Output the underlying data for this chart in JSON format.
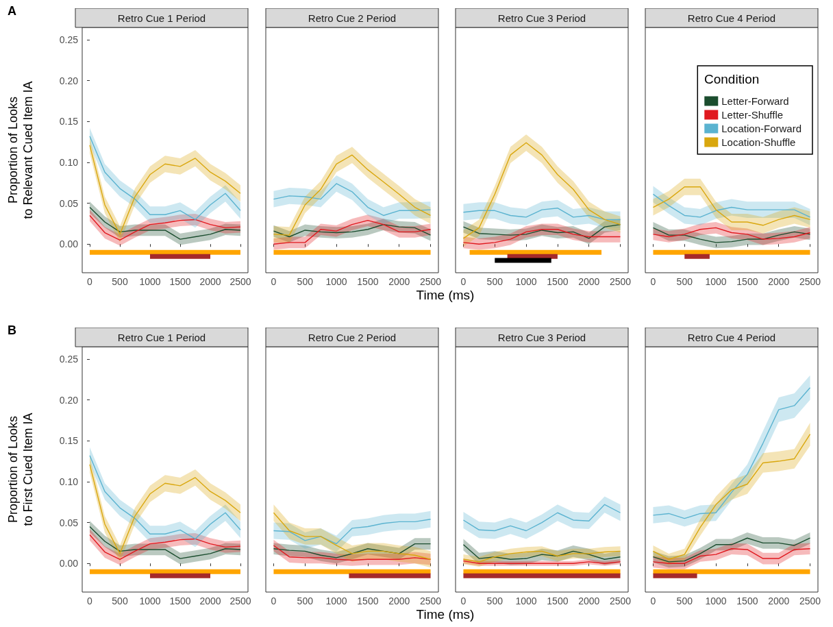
{
  "chart_data": [
    {
      "type": "line",
      "title": "Retro Cue 1 Period",
      "ylabel": "Proportion of Looks\nto Relevant Cued Item IA",
      "annotations": [
        "A"
      ],
      "xlim": [
        -125,
        2625
      ],
      "xticks": [
        0,
        500,
        1000,
        1500,
        2000,
        2500
      ],
      "ylim": [
        -0.035,
        0.265
      ],
      "yticks": [
        {
          "value": 0,
          "label": "0.00"
        },
        {
          "value": 0.05,
          "label": "0.05"
        },
        {
          "value": 0.1,
          "label": "0.10"
        },
        {
          "value": 0.15,
          "label": "0.15"
        },
        {
          "value": 0.2,
          "label": "0.20"
        },
        {
          "value": 0.25,
          "label": "0.25"
        }
      ],
      "x": [
        0,
        250,
        500,
        750,
        1000,
        1250,
        1500,
        1750,
        2000,
        2250,
        2500
      ],
      "series": [
        {
          "color": "#1b4d2e",
          "values": [
            0.045,
            0.027,
            0.015,
            0.017,
            0.017,
            0.017,
            0.006,
            0.009,
            0.012,
            0.018,
            0.017
          ],
          "lower": [
            0.038,
            0.02,
            0.008,
            0.01,
            0.01,
            0.01,
            -0.001,
            0.002,
            0.005,
            0.011,
            0.01
          ],
          "upper": [
            0.052,
            0.034,
            0.022,
            0.024,
            0.024,
            0.024,
            0.013,
            0.016,
            0.019,
            0.025,
            0.024
          ]
        },
        {
          "color": "#e0191f",
          "values": [
            0.035,
            0.014,
            0.005,
            0.015,
            0.024,
            0.026,
            0.029,
            0.03,
            0.024,
            0.02,
            0.021
          ],
          "lower": [
            0.028,
            0.007,
            -0.002,
            0.008,
            0.017,
            0.019,
            0.022,
            0.023,
            0.017,
            0.013,
            0.014
          ],
          "upper": [
            0.042,
            0.021,
            0.012,
            0.022,
            0.031,
            0.033,
            0.036,
            0.037,
            0.031,
            0.027,
            0.028
          ]
        },
        {
          "color": "#5bb3d0",
          "values": [
            0.132,
            0.088,
            0.068,
            0.055,
            0.036,
            0.036,
            0.041,
            0.03,
            0.048,
            0.062,
            0.041
          ],
          "lower": [
            0.122,
            0.078,
            0.058,
            0.045,
            0.026,
            0.026,
            0.031,
            0.02,
            0.038,
            0.052,
            0.031
          ],
          "upper": [
            0.142,
            0.098,
            0.078,
            0.065,
            0.046,
            0.046,
            0.051,
            0.04,
            0.058,
            0.072,
            0.051
          ]
        },
        {
          "color": "#d9a70e",
          "values": [
            0.121,
            0.048,
            0.012,
            0.058,
            0.085,
            0.098,
            0.095,
            0.105,
            0.088,
            0.077,
            0.062
          ],
          "lower": [
            0.111,
            0.038,
            0.002,
            0.048,
            0.075,
            0.088,
            0.085,
            0.095,
            0.078,
            0.067,
            0.052
          ],
          "upper": [
            0.131,
            0.058,
            0.022,
            0.068,
            0.095,
            0.108,
            0.105,
            0.115,
            0.098,
            0.087,
            0.072
          ]
        },
        {
          "color": "#ffa500",
          "x": [
            0,
            2500
          ],
          "values": [
            -0.01,
            -0.01
          ]
        },
        {
          "color": "#a52a2a",
          "x": [
            1000,
            2000
          ],
          "values": [
            -0.015,
            -0.015
          ]
        }
      ]
    },
    {
      "type": "line",
      "title": "Retro Cue 2 Period",
      "tick_labels": "x",
      "xlabel": "Time (ms)",
      "xlim": [
        -125,
        2625
      ],
      "xticks": [
        0,
        500,
        1000,
        1500,
        2000,
        2500
      ],
      "ylim": [
        -0.035,
        0.265
      ],
      "x": [
        0,
        250,
        500,
        750,
        1000,
        1250,
        1500,
        1750,
        2000,
        2250,
        2500
      ],
      "series": [
        {
          "color": "#1b4d2e",
          "values": [
            0.016,
            0.009,
            0.017,
            0.015,
            0.014,
            0.015,
            0.018,
            0.024,
            0.021,
            0.02,
            0.011
          ],
          "lower": [
            0.009,
            0.002,
            0.01,
            0.008,
            0.007,
            0.008,
            0.011,
            0.017,
            0.014,
            0.013,
            0.004
          ],
          "upper": [
            0.023,
            0.016,
            0.024,
            0.022,
            0.021,
            0.022,
            0.025,
            0.031,
            0.028,
            0.027,
            0.018
          ]
        },
        {
          "color": "#e0191f",
          "values": [
            0.0,
            0.002,
            0.002,
            0.018,
            0.016,
            0.024,
            0.029,
            0.024,
            0.015,
            0.015,
            0.018
          ],
          "lower": [
            -0.007,
            -0.005,
            -0.005,
            0.011,
            0.009,
            0.017,
            0.022,
            0.017,
            0.008,
            0.008,
            0.011
          ],
          "upper": [
            0.007,
            0.009,
            0.009,
            0.025,
            0.023,
            0.031,
            0.036,
            0.031,
            0.022,
            0.022,
            0.025
          ]
        },
        {
          "color": "#5bb3d0",
          "values": [
            0.055,
            0.059,
            0.058,
            0.055,
            0.074,
            0.064,
            0.045,
            0.035,
            0.041,
            0.041,
            0.042
          ],
          "lower": [
            0.045,
            0.049,
            0.048,
            0.045,
            0.064,
            0.054,
            0.035,
            0.025,
            0.031,
            0.031,
            0.032
          ],
          "upper": [
            0.065,
            0.069,
            0.068,
            0.065,
            0.084,
            0.074,
            0.055,
            0.045,
            0.051,
            0.051,
            0.052
          ]
        },
        {
          "color": "#d9a70e",
          "values": [
            0.012,
            0.011,
            0.048,
            0.067,
            0.098,
            0.109,
            0.091,
            0.076,
            0.061,
            0.045,
            0.035
          ],
          "lower": [
            0.002,
            0.001,
            0.038,
            0.057,
            0.088,
            0.099,
            0.081,
            0.066,
            0.051,
            0.035,
            0.025
          ],
          "upper": [
            0.022,
            0.021,
            0.058,
            0.077,
            0.108,
            0.119,
            0.101,
            0.086,
            0.071,
            0.055,
            0.045
          ]
        },
        {
          "color": "#ffa500",
          "x": [
            0,
            2500
          ],
          "values": [
            -0.01,
            -0.01
          ]
        }
      ]
    },
    {
      "type": "line",
      "title": "Retro Cue 3 Period",
      "tick_labels": "x",
      "xlim": [
        -125,
        2625
      ],
      "xticks": [
        0,
        500,
        1000,
        1500,
        2000,
        2500
      ],
      "ylim": [
        -0.035,
        0.265
      ],
      "x": [
        0,
        250,
        500,
        750,
        1000,
        1250,
        1500,
        1750,
        2000,
        2250,
        2500
      ],
      "series": [
        {
          "color": "#1b4d2e",
          "values": [
            0.021,
            0.013,
            0.012,
            0.011,
            0.012,
            0.017,
            0.014,
            0.015,
            0.007,
            0.021,
            0.024
          ],
          "lower": [
            0.014,
            0.006,
            0.005,
            0.004,
            0.005,
            0.01,
            0.007,
            0.008,
            0.0,
            0.014,
            0.017
          ],
          "upper": [
            0.028,
            0.02,
            0.019,
            0.018,
            0.019,
            0.024,
            0.021,
            0.022,
            0.014,
            0.028,
            0.031
          ]
        },
        {
          "color": "#e0191f",
          "values": [
            0.002,
            0.0,
            0.002,
            0.006,
            0.015,
            0.018,
            0.018,
            0.012,
            0.009,
            0.009,
            0.009
          ],
          "lower": [
            -0.005,
            -0.007,
            -0.005,
            -0.001,
            0.008,
            0.011,
            0.011,
            0.005,
            0.002,
            0.002,
            0.002
          ],
          "upper": [
            0.009,
            0.007,
            0.009,
            0.013,
            0.022,
            0.025,
            0.025,
            0.019,
            0.016,
            0.016,
            0.016
          ]
        },
        {
          "color": "#5bb3d0",
          "values": [
            0.039,
            0.041,
            0.041,
            0.035,
            0.033,
            0.042,
            0.044,
            0.033,
            0.035,
            0.03,
            0.03
          ],
          "lower": [
            0.029,
            0.031,
            0.031,
            0.025,
            0.023,
            0.032,
            0.034,
            0.023,
            0.025,
            0.02,
            0.02
          ],
          "upper": [
            0.049,
            0.051,
            0.051,
            0.045,
            0.043,
            0.052,
            0.054,
            0.043,
            0.045,
            0.04,
            0.04
          ]
        },
        {
          "color": "#d9a70e",
          "values": [
            0.007,
            0.02,
            0.061,
            0.109,
            0.124,
            0.109,
            0.085,
            0.067,
            0.042,
            0.03,
            0.024
          ],
          "lower": [
            -0.003,
            0.01,
            0.051,
            0.099,
            0.114,
            0.099,
            0.075,
            0.057,
            0.032,
            0.02,
            0.014
          ],
          "upper": [
            0.017,
            0.03,
            0.071,
            0.119,
            0.134,
            0.119,
            0.095,
            0.077,
            0.052,
            0.04,
            0.034
          ]
        },
        {
          "color": "#ffa500",
          "x": [
            100,
            2200
          ],
          "values": [
            -0.01,
            -0.01
          ]
        },
        {
          "color": "#a52a2a",
          "x": [
            700,
            1500
          ],
          "values": [
            -0.015,
            -0.015
          ]
        },
        {
          "color": "#000000",
          "x": [
            500,
            1400
          ],
          "values": [
            -0.02,
            -0.02
          ]
        }
      ]
    },
    {
      "type": "line",
      "title": "Retro Cue 4 Period",
      "tick_labels": "x",
      "legend": "top right",
      "legend_title": "Condition",
      "xlim": [
        -125,
        2625
      ],
      "xticks": [
        0,
        500,
        1000,
        1500,
        2000,
        2500
      ],
      "ylim": [
        -0.035,
        0.265
      ],
      "x": [
        0,
        250,
        500,
        750,
        1000,
        1250,
        1500,
        1750,
        2000,
        2250,
        2500
      ],
      "series": [
        {
          "name": "Letter-Forward",
          "color": "#1b4d2e",
          "values": [
            0.02,
            0.011,
            0.011,
            0.006,
            0.002,
            0.003,
            0.006,
            0.006,
            0.011,
            0.015,
            0.012
          ],
          "lower": [
            0.013,
            0.004,
            0.004,
            -0.001,
            -0.005,
            -0.004,
            -0.001,
            -0.001,
            0.004,
            0.008,
            0.005
          ],
          "upper": [
            0.027,
            0.018,
            0.018,
            0.013,
            0.009,
            0.01,
            0.013,
            0.013,
            0.018,
            0.022,
            0.019
          ]
        },
        {
          "name": "Letter-Shuffle",
          "color": "#e0191f",
          "values": [
            0.012,
            0.009,
            0.012,
            0.018,
            0.02,
            0.014,
            0.012,
            0.006,
            0.007,
            0.009,
            0.014
          ],
          "lower": [
            0.005,
            0.002,
            0.005,
            0.011,
            0.013,
            0.007,
            0.005,
            -0.001,
            0.0,
            0.002,
            0.007
          ],
          "upper": [
            0.019,
            0.016,
            0.019,
            0.025,
            0.027,
            0.021,
            0.019,
            0.013,
            0.014,
            0.016,
            0.021
          ]
        },
        {
          "name": "Location-Forward",
          "color": "#5bb3d0",
          "values": [
            0.061,
            0.047,
            0.035,
            0.033,
            0.041,
            0.045,
            0.042,
            0.042,
            0.042,
            0.042,
            0.033
          ],
          "lower": [
            0.051,
            0.037,
            0.025,
            0.023,
            0.031,
            0.035,
            0.032,
            0.032,
            0.032,
            0.032,
            0.023
          ],
          "upper": [
            0.071,
            0.057,
            0.045,
            0.043,
            0.051,
            0.055,
            0.052,
            0.052,
            0.052,
            0.052,
            0.043
          ]
        },
        {
          "name": "Location-Shuffle",
          "color": "#d9a70e",
          "values": [
            0.045,
            0.055,
            0.07,
            0.07,
            0.042,
            0.027,
            0.027,
            0.023,
            0.03,
            0.035,
            0.03
          ],
          "lower": [
            0.035,
            0.045,
            0.06,
            0.06,
            0.032,
            0.017,
            0.017,
            0.013,
            0.02,
            0.025,
            0.02
          ],
          "upper": [
            0.055,
            0.065,
            0.08,
            0.08,
            0.052,
            0.037,
            0.037,
            0.033,
            0.04,
            0.045,
            0.04
          ]
        },
        {
          "color": "#ffa500",
          "x": [
            0,
            2500
          ],
          "values": [
            -0.01,
            -0.01
          ]
        },
        {
          "color": "#a52a2a",
          "x": [
            500,
            900
          ],
          "values": [
            -0.015,
            -0.015
          ]
        }
      ]
    },
    {
      "type": "line",
      "title": "Retro Cue 1 Period",
      "ylabel": "Proportion of Looks\nto First Cued Item IA",
      "annotations": [
        "B"
      ],
      "xlim": [
        -125,
        2625
      ],
      "xticks": [
        0,
        500,
        1000,
        1500,
        2000,
        2500
      ],
      "ylim": [
        -0.035,
        0.265
      ],
      "yticks": [
        {
          "value": 0,
          "label": "0.00"
        },
        {
          "value": 0.05,
          "label": "0.05"
        },
        {
          "value": 0.1,
          "label": "0.10"
        },
        {
          "value": 0.15,
          "label": "0.15"
        },
        {
          "value": 0.2,
          "label": "0.20"
        },
        {
          "value": 0.25,
          "label": "0.25"
        }
      ],
      "x": [
        0,
        250,
        500,
        750,
        1000,
        1250,
        1500,
        1750,
        2000,
        2250,
        2500
      ],
      "series": [
        {
          "color": "#1b4d2e",
          "values": [
            0.045,
            0.027,
            0.015,
            0.017,
            0.017,
            0.017,
            0.006,
            0.009,
            0.012,
            0.018,
            0.017
          ],
          "lower": [
            0.038,
            0.02,
            0.008,
            0.01,
            0.01,
            0.01,
            -0.001,
            0.002,
            0.005,
            0.011,
            0.01
          ],
          "upper": [
            0.052,
            0.034,
            0.022,
            0.024,
            0.024,
            0.024,
            0.013,
            0.016,
            0.019,
            0.025,
            0.024
          ]
        },
        {
          "color": "#e0191f",
          "values": [
            0.035,
            0.014,
            0.005,
            0.015,
            0.024,
            0.026,
            0.029,
            0.03,
            0.024,
            0.02,
            0.021
          ],
          "lower": [
            0.028,
            0.007,
            -0.002,
            0.008,
            0.017,
            0.019,
            0.022,
            0.023,
            0.017,
            0.013,
            0.014
          ],
          "upper": [
            0.042,
            0.021,
            0.012,
            0.022,
            0.031,
            0.033,
            0.036,
            0.037,
            0.031,
            0.027,
            0.028
          ]
        },
        {
          "color": "#5bb3d0",
          "values": [
            0.132,
            0.088,
            0.068,
            0.055,
            0.036,
            0.036,
            0.041,
            0.03,
            0.048,
            0.062,
            0.041
          ],
          "lower": [
            0.122,
            0.078,
            0.058,
            0.045,
            0.026,
            0.026,
            0.031,
            0.02,
            0.038,
            0.052,
            0.031
          ],
          "upper": [
            0.142,
            0.098,
            0.078,
            0.065,
            0.046,
            0.046,
            0.051,
            0.04,
            0.058,
            0.072,
            0.051
          ]
        },
        {
          "color": "#d9a70e",
          "values": [
            0.121,
            0.048,
            0.012,
            0.058,
            0.085,
            0.098,
            0.095,
            0.105,
            0.088,
            0.077,
            0.062
          ],
          "lower": [
            0.111,
            0.038,
            0.002,
            0.048,
            0.075,
            0.088,
            0.085,
            0.095,
            0.078,
            0.067,
            0.052
          ],
          "upper": [
            0.131,
            0.058,
            0.022,
            0.068,
            0.095,
            0.108,
            0.105,
            0.115,
            0.098,
            0.087,
            0.072
          ]
        },
        {
          "color": "#ffa500",
          "x": [
            0,
            2500
          ],
          "values": [
            -0.01,
            -0.01
          ]
        },
        {
          "color": "#a52a2a",
          "x": [
            1000,
            2000
          ],
          "values": [
            -0.015,
            -0.015
          ]
        }
      ]
    },
    {
      "type": "line",
      "title": "Retro Cue 2 Period",
      "tick_labels": "x",
      "xlabel": "Time (ms)",
      "xlim": [
        -125,
        2625
      ],
      "xticks": [
        0,
        500,
        1000,
        1500,
        2000,
        2500
      ],
      "ylim": [
        -0.035,
        0.265
      ],
      "x": [
        0,
        250,
        500,
        750,
        1000,
        1250,
        1500,
        1750,
        2000,
        2250,
        2500
      ],
      "series": [
        {
          "color": "#1b4d2e",
          "values": [
            0.018,
            0.016,
            0.015,
            0.01,
            0.007,
            0.012,
            0.018,
            0.015,
            0.012,
            0.024,
            0.024
          ],
          "lower": [
            0.011,
            0.009,
            0.008,
            0.003,
            0.0,
            0.005,
            0.011,
            0.008,
            0.005,
            0.017,
            0.017
          ],
          "upper": [
            0.025,
            0.023,
            0.022,
            0.017,
            0.014,
            0.019,
            0.025,
            0.022,
            0.019,
            0.031,
            0.031
          ]
        },
        {
          "color": "#e0191f",
          "values": [
            0.022,
            0.008,
            0.007,
            0.007,
            0.005,
            0.004,
            0.005,
            0.005,
            0.005,
            0.007,
            0.005
          ],
          "lower": [
            0.015,
            0.001,
            0.0,
            0.0,
            -0.002,
            -0.003,
            -0.002,
            -0.002,
            -0.002,
            0.0,
            -0.002
          ],
          "upper": [
            0.029,
            0.015,
            0.014,
            0.014,
            0.012,
            0.011,
            0.012,
            0.012,
            0.012,
            0.014,
            0.012
          ]
        },
        {
          "color": "#5bb3d0",
          "values": [
            0.04,
            0.039,
            0.028,
            0.033,
            0.024,
            0.043,
            0.045,
            0.049,
            0.051,
            0.051,
            0.054
          ],
          "lower": [
            0.03,
            0.029,
            0.018,
            0.023,
            0.014,
            0.033,
            0.035,
            0.039,
            0.041,
            0.041,
            0.044
          ],
          "upper": [
            0.05,
            0.049,
            0.038,
            0.043,
            0.034,
            0.053,
            0.055,
            0.059,
            0.061,
            0.061,
            0.064
          ]
        },
        {
          "color": "#d9a70e",
          "values": [
            0.062,
            0.04,
            0.033,
            0.033,
            0.022,
            0.012,
            0.015,
            0.015,
            0.012,
            0.01,
            0.005
          ],
          "lower": [
            0.052,
            0.03,
            0.023,
            0.023,
            0.012,
            0.002,
            0.005,
            0.005,
            0.002,
            0.0,
            -0.005
          ],
          "upper": [
            0.072,
            0.05,
            0.043,
            0.043,
            0.032,
            0.022,
            0.025,
            0.025,
            0.022,
            0.02,
            0.015
          ]
        },
        {
          "color": "#ffa500",
          "x": [
            0,
            2500
          ],
          "values": [
            -0.01,
            -0.01
          ]
        },
        {
          "color": "#a52a2a",
          "x": [
            1200,
            2500
          ],
          "values": [
            -0.015,
            -0.015
          ]
        }
      ]
    },
    {
      "type": "line",
      "title": "Retro Cue 3 Period",
      "tick_labels": "x",
      "xlim": [
        -125,
        2625
      ],
      "xticks": [
        0,
        500,
        1000,
        1500,
        2000,
        2500
      ],
      "ylim": [
        -0.035,
        0.265
      ],
      "x": [
        0,
        250,
        500,
        750,
        1000,
        1250,
        1500,
        1750,
        2000,
        2250,
        2500
      ],
      "series": [
        {
          "color": "#1b4d2e",
          "values": [
            0.023,
            0.006,
            0.008,
            0.005,
            0.006,
            0.011,
            0.009,
            0.015,
            0.011,
            0.005,
            0.008
          ],
          "lower": [
            0.016,
            -0.001,
            0.001,
            -0.002,
            -0.001,
            0.004,
            0.002,
            0.008,
            0.004,
            -0.002,
            0.001
          ],
          "upper": [
            0.03,
            0.013,
            0.015,
            0.012,
            0.013,
            0.018,
            0.016,
            0.022,
            0.018,
            0.012,
            0.015
          ]
        },
        {
          "color": "#e0191f",
          "values": [
            0.003,
            0.0,
            0.0,
            0.0,
            0.0,
            0.0,
            0.0,
            0.0,
            0.002,
            0.0,
            0.002
          ],
          "lower": [
            0.0,
            -0.003,
            -0.003,
            -0.003,
            -0.003,
            -0.003,
            -0.003,
            -0.003,
            -0.001,
            -0.003,
            -0.001
          ],
          "upper": [
            0.006,
            0.003,
            0.003,
            0.003,
            0.003,
            0.003,
            0.003,
            0.003,
            0.005,
            0.003,
            0.005
          ]
        },
        {
          "color": "#5bb3d0",
          "values": [
            0.053,
            0.041,
            0.04,
            0.046,
            0.04,
            0.05,
            0.062,
            0.053,
            0.052,
            0.072,
            0.062
          ],
          "lower": [
            0.043,
            0.031,
            0.03,
            0.036,
            0.03,
            0.04,
            0.052,
            0.043,
            0.042,
            0.062,
            0.052
          ],
          "upper": [
            0.063,
            0.051,
            0.05,
            0.056,
            0.05,
            0.06,
            0.072,
            0.063,
            0.062,
            0.082,
            0.072
          ]
        },
        {
          "color": "#d9a70e",
          "values": [
            0.005,
            0.002,
            0.008,
            0.012,
            0.014,
            0.015,
            0.009,
            0.012,
            0.012,
            0.014,
            0.015
          ],
          "lower": [
            -0.001,
            -0.004,
            0.002,
            0.006,
            0.008,
            0.009,
            0.003,
            0.006,
            0.006,
            0.008,
            0.009
          ],
          "upper": [
            0.011,
            0.008,
            0.014,
            0.018,
            0.02,
            0.021,
            0.015,
            0.018,
            0.018,
            0.02,
            0.021
          ]
        },
        {
          "color": "#ffa500",
          "x": [
            0,
            2500
          ],
          "values": [
            -0.01,
            -0.01
          ]
        },
        {
          "color": "#a52a2a",
          "x": [
            0,
            2500
          ],
          "values": [
            -0.015,
            -0.015
          ]
        }
      ]
    },
    {
      "type": "line",
      "title": "Retro Cue 4 Period",
      "tick_labels": "x",
      "xlim": [
        -125,
        2625
      ],
      "xticks": [
        0,
        500,
        1000,
        1500,
        2000,
        2500
      ],
      "ylim": [
        -0.035,
        0.265
      ],
      "x": [
        0,
        250,
        500,
        750,
        1000,
        1250,
        1500,
        1750,
        2000,
        2250,
        2500
      ],
      "series": [
        {
          "color": "#1b4d2e",
          "values": [
            0.008,
            0.002,
            0.003,
            0.012,
            0.023,
            0.023,
            0.031,
            0.025,
            0.025,
            0.022,
            0.031
          ],
          "lower": [
            0.001,
            -0.005,
            -0.004,
            0.005,
            0.016,
            0.016,
            0.024,
            0.018,
            0.018,
            0.015,
            0.024
          ],
          "upper": [
            0.015,
            0.009,
            0.01,
            0.019,
            0.03,
            0.03,
            0.038,
            0.032,
            0.032,
            0.029,
            0.038
          ]
        },
        {
          "color": "#e0191f",
          "values": [
            0.002,
            0.0,
            0.0,
            0.009,
            0.011,
            0.018,
            0.017,
            0.006,
            0.006,
            0.017,
            0.018
          ],
          "lower": [
            -0.005,
            -0.007,
            -0.007,
            0.002,
            0.004,
            0.011,
            0.01,
            -0.001,
            -0.001,
            0.01,
            0.011
          ],
          "upper": [
            0.009,
            0.007,
            0.007,
            0.016,
            0.018,
            0.025,
            0.024,
            0.013,
            0.013,
            0.024,
            0.025
          ]
        },
        {
          "color": "#5bb3d0",
          "values": [
            0.059,
            0.061,
            0.055,
            0.061,
            0.062,
            0.087,
            0.109,
            0.147,
            0.188,
            0.193,
            0.215
          ],
          "lower": [
            0.049,
            0.051,
            0.045,
            0.051,
            0.052,
            0.077,
            0.097,
            0.132,
            0.173,
            0.178,
            0.2
          ],
          "upper": [
            0.069,
            0.071,
            0.065,
            0.071,
            0.072,
            0.097,
            0.121,
            0.162,
            0.203,
            0.208,
            0.23
          ]
        },
        {
          "color": "#d9a70e",
          "values": [
            0.015,
            0.005,
            0.011,
            0.044,
            0.072,
            0.09,
            0.097,
            0.123,
            0.125,
            0.128,
            0.158
          ],
          "lower": [
            0.008,
            -0.002,
            0.004,
            0.034,
            0.062,
            0.078,
            0.085,
            0.111,
            0.113,
            0.116,
            0.144
          ],
          "upper": [
            0.022,
            0.012,
            0.018,
            0.054,
            0.082,
            0.102,
            0.109,
            0.135,
            0.137,
            0.14,
            0.172
          ]
        },
        {
          "color": "#ffa500",
          "x": [
            0,
            2500
          ],
          "values": [
            -0.01,
            -0.01
          ]
        },
        {
          "color": "#a52a2a",
          "x": [
            0,
            700
          ],
          "values": [
            -0.015,
            -0.015
          ]
        }
      ]
    }
  ]
}
